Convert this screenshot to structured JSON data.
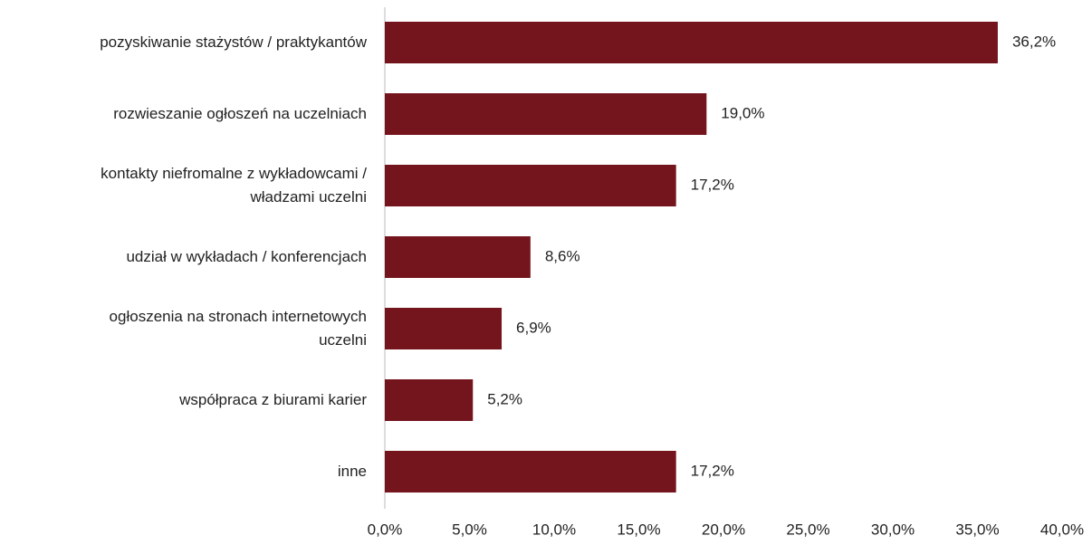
{
  "chart_data": {
    "type": "bar",
    "orientation": "horizontal",
    "categories": [
      "pozyskiwanie stażystów / praktykantów",
      "rozwieszanie ogłoszeń na uczelniach",
      "kontakty niefromalne z wykładowcami /\nwładzami uczelni",
      "udział w wykładach / konferencjach",
      "ogłoszenia na stronach internetowych\nuczelni",
      "współpraca z biurami karier",
      "inne"
    ],
    "values": [
      36.2,
      19.0,
      17.2,
      8.6,
      6.9,
      5.2,
      17.2
    ],
    "value_labels": [
      "36,2%",
      "19,0%",
      "17,2%",
      "8,6%",
      "6,9%",
      "5,2%",
      "17,2%"
    ],
    "color": "#74141c",
    "xlim": [
      0,
      40
    ],
    "xticks": [
      {
        "value": 0,
        "label": "0,0%"
      },
      {
        "value": 5,
        "label": "5,0%"
      },
      {
        "value": 10,
        "label": "10,0%"
      },
      {
        "value": 15,
        "label": "15,0%"
      },
      {
        "value": 20,
        "label": "20,0%"
      },
      {
        "value": 25,
        "label": "25,0%"
      },
      {
        "value": 30,
        "label": "30,0%"
      },
      {
        "value": 35,
        "label": "35,0%"
      },
      {
        "value": 40,
        "label": "40,0%"
      }
    ],
    "grid": false
  }
}
